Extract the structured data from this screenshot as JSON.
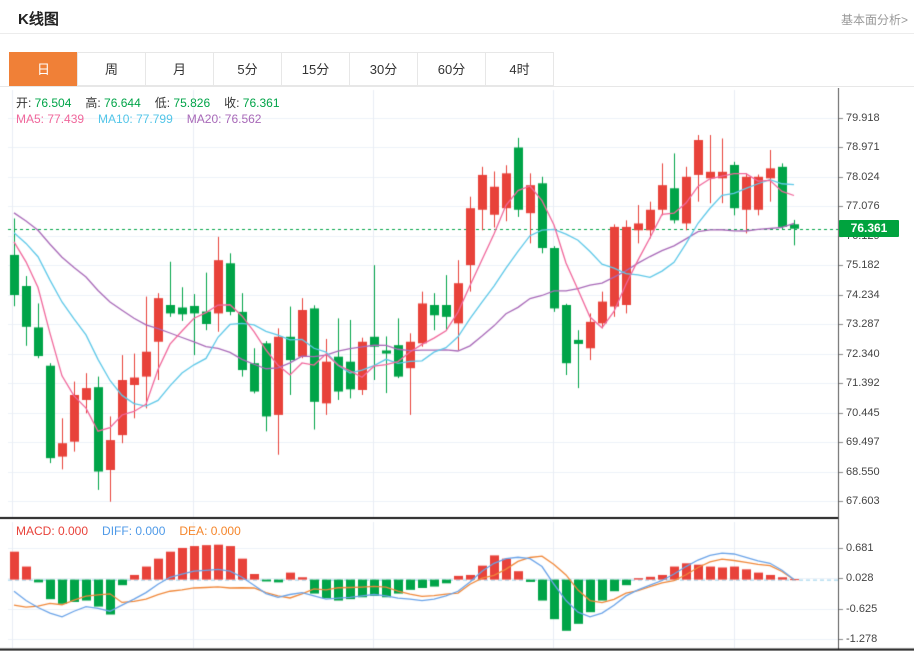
{
  "header": {
    "title": "K线图",
    "link": "基本面分析>"
  },
  "tabs": {
    "selected": "日",
    "items": [
      "日",
      "周",
      "月",
      "5分",
      "15分",
      "30分",
      "60分",
      "4时"
    ]
  },
  "legend": {
    "ohlc": [
      {
        "label": "开:",
        "value": "76.504"
      },
      {
        "label": "高:",
        "value": "76.644"
      },
      {
        "label": "低:",
        "value": "75.826"
      },
      {
        "label": "收:",
        "value": "76.361"
      }
    ],
    "ma": [
      {
        "label": "MA5:",
        "value": "77.439",
        "color": "#f0679b"
      },
      {
        "label": "MA10:",
        "value": "77.799",
        "color": "#52c5e8"
      },
      {
        "label": "MA20:",
        "value": "76.562",
        "color": "#a869b8"
      }
    ],
    "macd": [
      {
        "label": "MACD:",
        "value": "0.000",
        "color": "#e8423a"
      },
      {
        "label": "DIFF:",
        "value": "0.000",
        "color": "#4f9ae8"
      },
      {
        "label": "DEA:",
        "value": "0.000",
        "color": "#f5862b"
      }
    ]
  },
  "chart_data": {
    "type": "candlestick+macd",
    "title": "K线图 daily candles",
    "price_axis": {
      "ticks": [
        79.918,
        78.971,
        78.024,
        77.076,
        76.129,
        75.182,
        74.234,
        73.287,
        72.34,
        71.392,
        70.445,
        69.497,
        68.55,
        67.603
      ]
    },
    "current_price": "76.361",
    "current_price_value": 76.361,
    "macd_axis": {
      "ticks": [
        0.681,
        0.028,
        -0.625,
        -1.278
      ]
    },
    "colors": {
      "up": "#e8423a",
      "down": "#00a448",
      "dotted_line": "#00a448",
      "badge": "#00a33e",
      "ma5": "#f0679b",
      "ma10": "#5ec8e8",
      "ma20": "#a869b8",
      "diff": "#6aa3e8",
      "dea": "#f0883a",
      "grid": "#edf2f8",
      "vgrid": "#e9edf4",
      "axis_border": "#555",
      "panel_border": "#1a1a1a",
      "tab_accent": "#f08037",
      "macd_zero_dash": "#a8d8ee"
    },
    "candles_ohlc": [
      [
        75.52,
        76.69,
        73.87,
        74.23
      ],
      [
        74.52,
        74.84,
        72.6,
        73.21
      ],
      [
        73.19,
        73.96,
        72.2,
        72.27
      ],
      [
        71.96,
        72.04,
        68.83,
        68.99
      ],
      [
        69.04,
        70.27,
        68.63,
        69.47
      ],
      [
        69.52,
        71.45,
        69.2,
        71.02
      ],
      [
        70.86,
        71.72,
        70.43,
        71.24
      ],
      [
        71.27,
        71.61,
        67.97,
        68.56
      ],
      [
        68.61,
        70.33,
        67.59,
        69.57
      ],
      [
        69.73,
        72.3,
        69.47,
        71.5
      ],
      [
        71.34,
        72.35,
        70.27,
        71.58
      ],
      [
        71.61,
        74.18,
        70.59,
        72.41
      ],
      [
        72.73,
        74.29,
        71.5,
        74.13
      ],
      [
        73.91,
        75.3,
        73.53,
        73.64
      ],
      [
        73.83,
        74.48,
        73.4,
        73.61
      ],
      [
        73.88,
        74.26,
        72.3,
        73.64
      ],
      [
        73.7,
        74.95,
        73.1,
        73.3
      ],
      [
        73.64,
        76.1,
        73.05,
        75.35
      ],
      [
        75.25,
        75.57,
        73.58,
        73.69
      ],
      [
        73.69,
        74.29,
        71.61,
        71.82
      ],
      [
        72.04,
        72.52,
        71.07,
        71.13
      ],
      [
        72.68,
        72.75,
        69.85,
        70.33
      ],
      [
        70.38,
        73.16,
        69.1,
        72.89
      ],
      [
        72.89,
        73.86,
        71.02,
        72.14
      ],
      [
        72.25,
        74.13,
        72.2,
        73.75
      ],
      [
        73.8,
        73.9,
        69.91,
        70.8
      ],
      [
        70.75,
        72.82,
        70.38,
        72.09
      ],
      [
        72.25,
        73.48,
        70.86,
        71.13
      ],
      [
        72.09,
        73.43,
        70.91,
        71.2
      ],
      [
        71.18,
        72.86,
        71.02,
        72.73
      ],
      [
        72.89,
        75.19,
        71.5,
        72.57
      ],
      [
        72.45,
        72.9,
        71.08,
        72.35
      ],
      [
        72.62,
        73.48,
        71.56,
        71.61
      ],
      [
        71.88,
        73.0,
        70.38,
        72.73
      ],
      [
        72.68,
        74.34,
        72.57,
        73.96
      ],
      [
        73.91,
        74.29,
        73.1,
        73.58
      ],
      [
        73.91,
        74.87,
        73.1,
        73.53
      ],
      [
        73.32,
        75.35,
        72.46,
        74.61
      ],
      [
        75.19,
        77.39,
        74.34,
        77.02
      ],
      [
        76.97,
        78.35,
        76.31,
        78.09
      ],
      [
        76.81,
        78.2,
        76.4,
        77.71
      ],
      [
        77.02,
        78.4,
        76.6,
        78.14
      ],
      [
        78.97,
        79.28,
        76.74,
        76.97
      ],
      [
        76.86,
        78.14,
        75.89,
        77.76
      ],
      [
        77.82,
        78.03,
        75.57,
        75.74
      ],
      [
        75.74,
        75.8,
        73.69,
        73.8
      ],
      [
        73.91,
        73.95,
        71.66,
        72.04
      ],
      [
        72.79,
        73.1,
        71.24,
        72.66
      ],
      [
        72.52,
        73.64,
        72.14,
        73.37
      ],
      [
        73.32,
        74.34,
        73.16,
        74.02
      ],
      [
        73.86,
        76.5,
        73.53,
        76.42
      ],
      [
        73.91,
        76.63,
        73.64,
        76.42
      ],
      [
        76.31,
        77.12,
        75.89,
        76.53
      ],
      [
        76.31,
        77.23,
        76.05,
        76.97
      ],
      [
        76.97,
        78.46,
        76.79,
        77.76
      ],
      [
        77.66,
        78.78,
        76.53,
        76.63
      ],
      [
        76.53,
        78.35,
        76.31,
        78.03
      ],
      [
        78.09,
        79.37,
        77.23,
        79.21
      ],
      [
        77.98,
        79.37,
        77.18,
        78.19
      ],
      [
        77.98,
        79.26,
        77.18,
        78.19
      ],
      [
        78.41,
        78.51,
        76.79,
        77.02
      ],
      [
        76.97,
        78.14,
        76.21,
        78.03
      ],
      [
        76.97,
        78.1,
        76.79,
        78.03
      ],
      [
        77.98,
        78.89,
        77.23,
        78.3
      ],
      [
        78.35,
        78.46,
        76.35,
        76.42
      ],
      [
        76.504,
        76.644,
        75.826,
        76.361
      ]
    ],
    "ma_seed_closes": [
      78.6,
      78.4,
      78.2,
      78.0,
      77.8,
      77.6,
      77.4,
      77.2,
      77.0,
      76.8,
      76.7,
      76.6,
      76.55,
      76.5,
      76.5,
      76.45,
      76.4,
      76.4,
      76.35,
      76.3
    ],
    "macd": {
      "hist": [
        0.6,
        0.28,
        -0.06,
        -0.42,
        -0.52,
        -0.48,
        -0.45,
        -0.58,
        -0.75,
        -0.12,
        0.1,
        0.28,
        0.45,
        0.6,
        0.68,
        0.72,
        0.74,
        0.75,
        0.72,
        0.45,
        0.12,
        -0.04,
        -0.06,
        0.15,
        0.05,
        -0.3,
        -0.4,
        -0.45,
        -0.42,
        -0.38,
        -0.35,
        -0.38,
        -0.3,
        -0.22,
        -0.18,
        -0.15,
        -0.08,
        0.08,
        0.1,
        0.3,
        0.52,
        0.45,
        0.18,
        -0.05,
        -0.45,
        -0.85,
        -1.1,
        -0.95,
        -0.7,
        -0.45,
        -0.25,
        -0.12,
        0.03,
        0.06,
        0.1,
        0.28,
        0.35,
        0.32,
        0.28,
        0.26,
        0.28,
        0.22,
        0.15,
        0.1,
        0.05,
        0.01
      ],
      "diff": [
        -0.25,
        -0.45,
        -0.6,
        -0.72,
        -0.8,
        -0.68,
        -0.58,
        -0.62,
        -0.68,
        -0.55,
        -0.42,
        -0.28,
        -0.1,
        0.05,
        0.12,
        0.18,
        0.2,
        0.22,
        0.18,
        0.05,
        -0.12,
        -0.3,
        -0.38,
        -0.32,
        -0.28,
        -0.35,
        -0.42,
        -0.4,
        -0.38,
        -0.35,
        -0.32,
        -0.35,
        -0.4,
        -0.42,
        -0.45,
        -0.42,
        -0.35,
        -0.25,
        -0.05,
        0.18,
        0.35,
        0.45,
        0.48,
        0.45,
        0.28,
        -0.1,
        -0.45,
        -0.7,
        -0.8,
        -0.72,
        -0.55,
        -0.35,
        -0.22,
        -0.12,
        -0.02,
        0.12,
        0.28,
        0.42,
        0.52,
        0.57,
        0.55,
        0.48,
        0.4,
        0.35,
        0.2,
        0.0
      ]
    }
  }
}
